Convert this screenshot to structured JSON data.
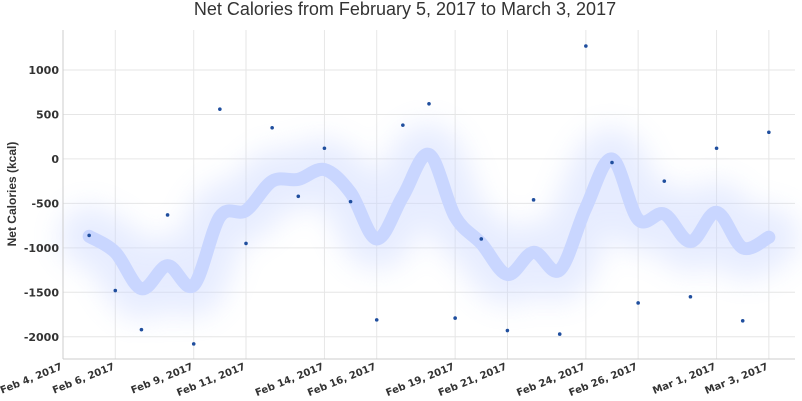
{
  "chart_data": {
    "type": "scatter",
    "title": "Net Calories from February 5, 2017 to March 3, 2017",
    "xlabel": "",
    "ylabel": "Net Calories (kcal)",
    "xlim": [
      "2017-02-04",
      "2017-03-04"
    ],
    "ylim": [
      -2250,
      1450
    ],
    "grid": true,
    "y_ticks": [
      -2000,
      -1500,
      -1000,
      -500,
      0,
      500,
      1000
    ],
    "x_ticks": [
      {
        "date": "2017-02-04",
        "label": "Feb 4, 2017"
      },
      {
        "date": "2017-02-06",
        "label": "Feb 6, 2017"
      },
      {
        "date": "2017-02-09",
        "label": "Feb 9, 2017"
      },
      {
        "date": "2017-02-11",
        "label": "Feb 11, 2017"
      },
      {
        "date": "2017-02-14",
        "label": "Feb 14, 2017"
      },
      {
        "date": "2017-02-16",
        "label": "Feb 16, 2017"
      },
      {
        "date": "2017-02-19",
        "label": "Feb 19, 2017"
      },
      {
        "date": "2017-02-21",
        "label": "Feb 21, 2017"
      },
      {
        "date": "2017-02-24",
        "label": "Feb 24, 2017"
      },
      {
        "date": "2017-02-26",
        "label": "Feb 26, 2017"
      },
      {
        "date": "2017-03-01",
        "label": "Mar 1, 2017"
      },
      {
        "date": "2017-03-03",
        "label": "Mar 3, 2017"
      }
    ],
    "point_color": "#1f4e9e",
    "trend_color": "#c9d6ff",
    "series": [
      {
        "name": "",
        "x": [
          "2017-02-05",
          "2017-02-06",
          "2017-02-07",
          "2017-02-08",
          "2017-02-09",
          "2017-02-10",
          "2017-02-11",
          "2017-02-12",
          "2017-02-13",
          "2017-02-14",
          "2017-02-15",
          "2017-02-16",
          "2017-02-17",
          "2017-02-18",
          "2017-02-19",
          "2017-02-20",
          "2017-02-21",
          "2017-02-22",
          "2017-02-23",
          "2017-02-24",
          "2017-02-25",
          "2017-02-26",
          "2017-02-27",
          "2017-02-28",
          "2017-03-01",
          "2017-03-02",
          "2017-03-03"
        ],
        "y": [
          -860,
          -1480,
          -1920,
          -630,
          -2080,
          560,
          -950,
          350,
          -420,
          120,
          -480,
          -1810,
          380,
          620,
          -1790,
          -900,
          -1930,
          -460,
          -1970,
          1270,
          -40,
          -1620,
          -250,
          -1550,
          120,
          -1820,
          300
        ]
      }
    ],
    "trend": {
      "x": [
        "2017-02-05",
        "2017-02-06",
        "2017-02-07",
        "2017-02-08",
        "2017-02-09",
        "2017-02-10",
        "2017-02-11",
        "2017-02-12",
        "2017-02-13",
        "2017-02-14",
        "2017-02-15",
        "2017-02-16",
        "2017-02-17",
        "2017-02-18",
        "2017-02-19",
        "2017-02-20",
        "2017-02-21",
        "2017-02-22",
        "2017-02-23",
        "2017-02-24",
        "2017-02-25",
        "2017-02-26",
        "2017-02-27",
        "2017-02-28",
        "2017-03-01",
        "2017-03-02",
        "2017-03-03"
      ],
      "y": [
        -870,
        -1050,
        -1460,
        -1200,
        -1420,
        -650,
        -580,
        -250,
        -230,
        -120,
        -380,
        -900,
        -420,
        50,
        -650,
        -950,
        -1300,
        -1050,
        -1250,
        -550,
        0,
        -680,
        -620,
        -930,
        -600,
        -1000,
        -880
      ]
    }
  }
}
